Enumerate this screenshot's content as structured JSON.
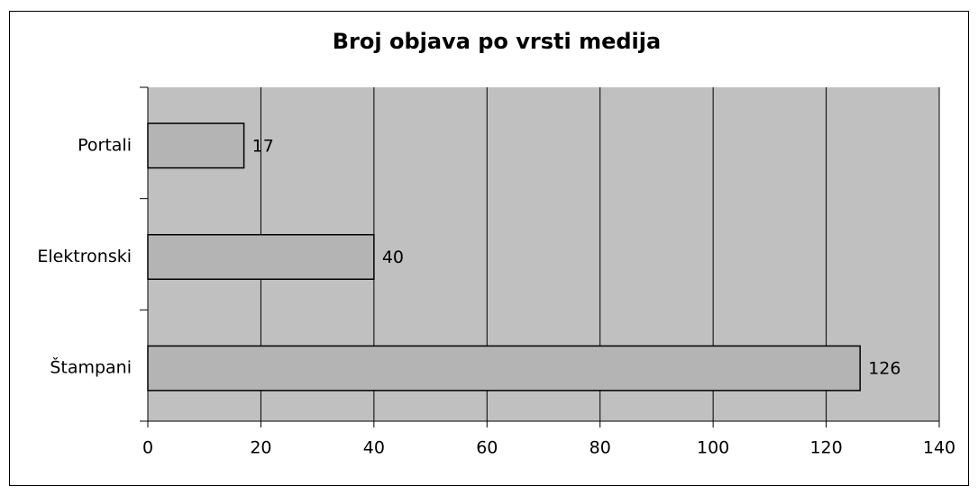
{
  "chart_data": {
    "type": "bar",
    "orientation": "horizontal",
    "title": "Broj objava po vrsti medija",
    "categories": [
      "Portali",
      "Elektronski",
      "Štampani"
    ],
    "values": [
      17,
      40,
      126
    ],
    "color": "#b4b4b4",
    "plot_background": "#c0c0c0",
    "xlim": [
      0,
      140
    ],
    "xticks": [
      0,
      20,
      40,
      60,
      80,
      100,
      120,
      140
    ],
    "grid": true
  }
}
